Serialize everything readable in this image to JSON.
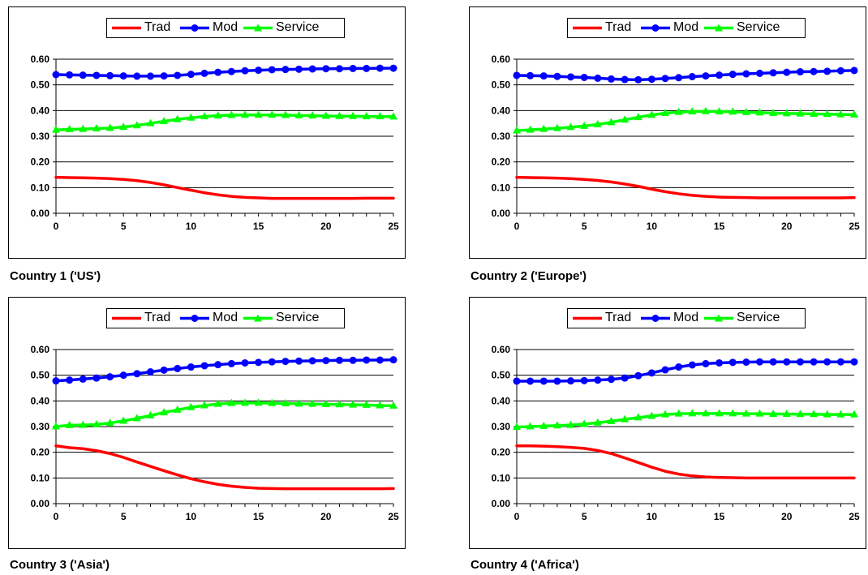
{
  "legend_labels": [
    "Trad",
    "Mod",
    "Service"
  ],
  "series_colors": {
    "Trad": "#ff0000",
    "Mod": "#0000ff",
    "Service": "#00ff00"
  },
  "series_markers": {
    "Trad": "none",
    "Mod": "circle",
    "Service": "triangle"
  },
  "chart_data": [
    {
      "type": "line",
      "caption": "Country 1 ('US')",
      "x": [
        0,
        1,
        2,
        3,
        4,
        5,
        6,
        7,
        8,
        9,
        10,
        11,
        12,
        13,
        14,
        15,
        16,
        17,
        18,
        19,
        20,
        21,
        22,
        23,
        24,
        25
      ],
      "xticks": [
        "0",
        "5",
        "10",
        "15",
        "20",
        "25"
      ],
      "yticks": [
        "0.00",
        "0.10",
        "0.20",
        "0.30",
        "0.40",
        "0.50",
        "0.60"
      ],
      "ylim": [
        0,
        0.6
      ],
      "xlim": [
        0,
        25
      ],
      "grid": "horizontal",
      "legend": "top-center",
      "series": [
        {
          "name": "Trad",
          "values": [
            0.14,
            0.139,
            0.138,
            0.137,
            0.135,
            0.132,
            0.127,
            0.12,
            0.111,
            0.1,
            0.09,
            0.08,
            0.072,
            0.066,
            0.062,
            0.06,
            0.058,
            0.058,
            0.058,
            0.058,
            0.058,
            0.058,
            0.058,
            0.059,
            0.059,
            0.059
          ]
        },
        {
          "name": "Mod",
          "values": [
            0.54,
            0.539,
            0.538,
            0.537,
            0.536,
            0.535,
            0.534,
            0.534,
            0.535,
            0.537,
            0.541,
            0.545,
            0.549,
            0.552,
            0.555,
            0.557,
            0.559,
            0.56,
            0.561,
            0.562,
            0.563,
            0.563,
            0.564,
            0.564,
            0.565,
            0.565
          ]
        },
        {
          "name": "Service",
          "values": [
            0.325,
            0.327,
            0.328,
            0.33,
            0.332,
            0.336,
            0.342,
            0.35,
            0.358,
            0.366,
            0.372,
            0.377,
            0.38,
            0.382,
            0.383,
            0.383,
            0.383,
            0.382,
            0.381,
            0.38,
            0.379,
            0.378,
            0.378,
            0.377,
            0.377,
            0.376
          ]
        }
      ]
    },
    {
      "type": "line",
      "caption": "Country 2 ('Europe')",
      "x": [
        0,
        1,
        2,
        3,
        4,
        5,
        6,
        7,
        8,
        9,
        10,
        11,
        12,
        13,
        14,
        15,
        16,
        17,
        18,
        19,
        20,
        21,
        22,
        23,
        24,
        25
      ],
      "xticks": [
        "0",
        "5",
        "10",
        "15",
        "20",
        "25"
      ],
      "yticks": [
        "0.00",
        "0.10",
        "0.20",
        "0.30",
        "0.40",
        "0.50",
        "0.60"
      ],
      "ylim": [
        0,
        0.6
      ],
      "xlim": [
        0,
        25
      ],
      "grid": "horizontal",
      "legend": "top-center",
      "series": [
        {
          "name": "Trad",
          "values": [
            0.14,
            0.139,
            0.138,
            0.137,
            0.135,
            0.132,
            0.128,
            0.122,
            0.114,
            0.105,
            0.094,
            0.084,
            0.076,
            0.07,
            0.066,
            0.063,
            0.062,
            0.061,
            0.06,
            0.06,
            0.06,
            0.06,
            0.06,
            0.06,
            0.06,
            0.061
          ]
        },
        {
          "name": "Mod",
          "values": [
            0.537,
            0.536,
            0.535,
            0.533,
            0.531,
            0.529,
            0.526,
            0.523,
            0.521,
            0.52,
            0.522,
            0.525,
            0.528,
            0.532,
            0.535,
            0.538,
            0.541,
            0.543,
            0.545,
            0.547,
            0.549,
            0.551,
            0.552,
            0.553,
            0.555,
            0.556
          ]
        },
        {
          "name": "Service",
          "values": [
            0.322,
            0.325,
            0.328,
            0.331,
            0.335,
            0.34,
            0.346,
            0.354,
            0.364,
            0.374,
            0.383,
            0.39,
            0.394,
            0.396,
            0.397,
            0.396,
            0.395,
            0.393,
            0.392,
            0.39,
            0.389,
            0.388,
            0.387,
            0.386,
            0.385,
            0.384
          ]
        }
      ]
    },
    {
      "type": "line",
      "caption": "Country 3 ('Asia')",
      "x": [
        0,
        1,
        2,
        3,
        4,
        5,
        6,
        7,
        8,
        9,
        10,
        11,
        12,
        13,
        14,
        15,
        16,
        17,
        18,
        19,
        20,
        21,
        22,
        23,
        24,
        25
      ],
      "xticks": [
        "0",
        "5",
        "10",
        "15",
        "20",
        "25"
      ],
      "yticks": [
        "0.00",
        "0.10",
        "0.20",
        "0.30",
        "0.40",
        "0.50",
        "0.60"
      ],
      "ylim": [
        0,
        0.6
      ],
      "xlim": [
        0,
        25
      ],
      "grid": "horizontal",
      "legend": "top-center",
      "series": [
        {
          "name": "Trad",
          "values": [
            0.225,
            0.218,
            0.214,
            0.206,
            0.195,
            0.18,
            0.162,
            0.145,
            0.128,
            0.112,
            0.097,
            0.085,
            0.075,
            0.068,
            0.063,
            0.06,
            0.059,
            0.058,
            0.058,
            0.058,
            0.058,
            0.058,
            0.058,
            0.058,
            0.058,
            0.059
          ]
        },
        {
          "name": "Mod",
          "values": [
            0.478,
            0.481,
            0.485,
            0.489,
            0.494,
            0.5,
            0.506,
            0.513,
            0.52,
            0.526,
            0.532,
            0.537,
            0.541,
            0.545,
            0.548,
            0.55,
            0.552,
            0.554,
            0.555,
            0.556,
            0.557,
            0.558,
            0.558,
            0.559,
            0.559,
            0.56
          ]
        },
        {
          "name": "Service",
          "values": [
            0.3,
            0.305,
            0.306,
            0.308,
            0.314,
            0.322,
            0.332,
            0.343,
            0.355,
            0.365,
            0.375,
            0.382,
            0.388,
            0.391,
            0.392,
            0.392,
            0.391,
            0.39,
            0.389,
            0.388,
            0.387,
            0.386,
            0.385,
            0.384,
            0.382,
            0.381
          ]
        }
      ]
    },
    {
      "type": "line",
      "caption": "Country 4 ('Africa')",
      "x": [
        0,
        1,
        2,
        3,
        4,
        5,
        6,
        7,
        8,
        9,
        10,
        11,
        12,
        13,
        14,
        15,
        16,
        17,
        18,
        19,
        20,
        21,
        22,
        23,
        24,
        25
      ],
      "xticks": [
        "0",
        "5",
        "10",
        "15",
        "20",
        "25"
      ],
      "yticks": [
        "0.00",
        "0.10",
        "0.20",
        "0.30",
        "0.40",
        "0.50",
        "0.60"
      ],
      "ylim": [
        0,
        0.6
      ],
      "xlim": [
        0,
        25
      ],
      "grid": "horizontal",
      "legend": "top-center",
      "series": [
        {
          "name": "Trad",
          "values": [
            0.225,
            0.225,
            0.224,
            0.222,
            0.219,
            0.215,
            0.207,
            0.195,
            0.178,
            0.16,
            0.142,
            0.126,
            0.115,
            0.108,
            0.104,
            0.102,
            0.101,
            0.1,
            0.1,
            0.1,
            0.1,
            0.1,
            0.1,
            0.1,
            0.1,
            0.1
          ]
        },
        {
          "name": "Mod",
          "values": [
            0.477,
            0.477,
            0.477,
            0.477,
            0.478,
            0.479,
            0.481,
            0.484,
            0.489,
            0.498,
            0.509,
            0.521,
            0.532,
            0.54,
            0.545,
            0.548,
            0.55,
            0.551,
            0.552,
            0.552,
            0.552,
            0.552,
            0.552,
            0.552,
            0.552,
            0.552
          ]
        },
        {
          "name": "Service",
          "values": [
            0.298,
            0.3,
            0.302,
            0.304,
            0.306,
            0.31,
            0.315,
            0.321,
            0.328,
            0.335,
            0.341,
            0.347,
            0.35,
            0.351,
            0.351,
            0.351,
            0.351,
            0.35,
            0.35,
            0.349,
            0.349,
            0.348,
            0.348,
            0.347,
            0.347,
            0.347
          ]
        }
      ]
    }
  ]
}
